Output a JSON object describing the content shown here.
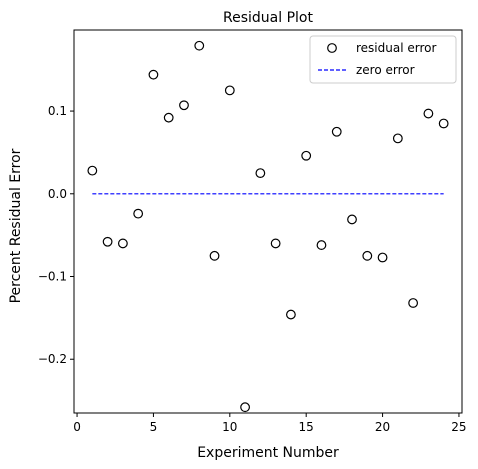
{
  "chart_data": {
    "type": "scatter",
    "title": "Residual Plot",
    "xlabel": "Experiment Number",
    "ylabel": "Percent Residual Error",
    "xlim": [
      -0.2,
      25.2
    ],
    "ylim": [
      -0.265,
      0.198
    ],
    "xticks": [
      0,
      5,
      10,
      15,
      20,
      25
    ],
    "xtick_labels": [
      "0",
      "5",
      "10",
      "15",
      "20",
      "25"
    ],
    "yticks": [
      -0.2,
      -0.1,
      0.0,
      0.1
    ],
    "ytick_labels": [
      "−0.2",
      "−0.1",
      "0.0",
      "0.1"
    ],
    "grid": false,
    "legend_position": "top-right",
    "series": [
      {
        "name": "residual error",
        "kind": "scatter",
        "marker": "open-circle",
        "color": "#000000",
        "x": [
          1,
          2,
          3,
          4,
          5,
          6,
          7,
          8,
          9,
          10,
          11,
          12,
          13,
          14,
          15,
          16,
          17,
          18,
          19,
          20,
          21,
          22,
          23,
          24
        ],
        "y": [
          0.028,
          -0.058,
          -0.06,
          -0.024,
          0.144,
          0.092,
          0.107,
          0.179,
          -0.075,
          0.125,
          -0.258,
          0.025,
          -0.06,
          -0.146,
          0.046,
          -0.062,
          0.075,
          -0.031,
          -0.075,
          -0.077,
          0.067,
          -0.132,
          0.097,
          0.085
        ]
      },
      {
        "name": "zero error",
        "kind": "line",
        "style": "dashed",
        "color": "#0000ff",
        "x": [
          1,
          24
        ],
        "y": [
          0,
          0
        ]
      }
    ]
  }
}
